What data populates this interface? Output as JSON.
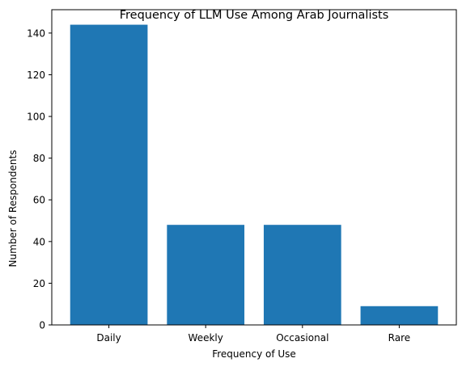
{
  "chart_data": {
    "type": "bar",
    "title": "Frequency of LLM Use Among Arab Journalists",
    "xlabel": "Frequency of Use",
    "ylabel": "Number of Respondents",
    "categories": [
      "Daily",
      "Weekly",
      "Occasional",
      "Rare"
    ],
    "values": [
      144,
      48,
      48,
      9
    ],
    "ylim": [
      0,
      151.2
    ],
    "yticks": [
      0,
      20,
      40,
      60,
      80,
      100,
      120,
      140
    ],
    "bar_color": "#1f77b4",
    "grid": false,
    "legend": "none"
  }
}
